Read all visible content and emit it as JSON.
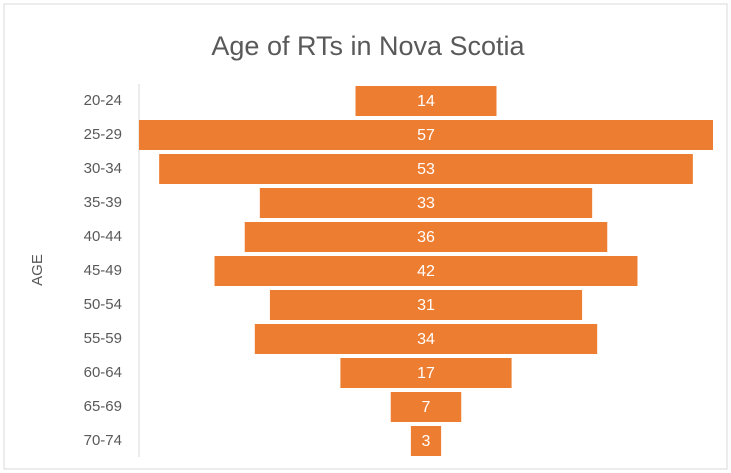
{
  "chart_data": {
    "type": "funnel",
    "title": "Age of RTs in Nova Scotia",
    "y_label": "AGE",
    "categories": [
      "20-24",
      "25-29",
      "30-34",
      "35-39",
      "40-44",
      "45-49",
      "50-54",
      "55-59",
      "60-64",
      "65-69",
      "70-74"
    ],
    "values": [
      14,
      57,
      53,
      33,
      36,
      42,
      31,
      34,
      17,
      7,
      3
    ],
    "color": "#ed7d31"
  }
}
